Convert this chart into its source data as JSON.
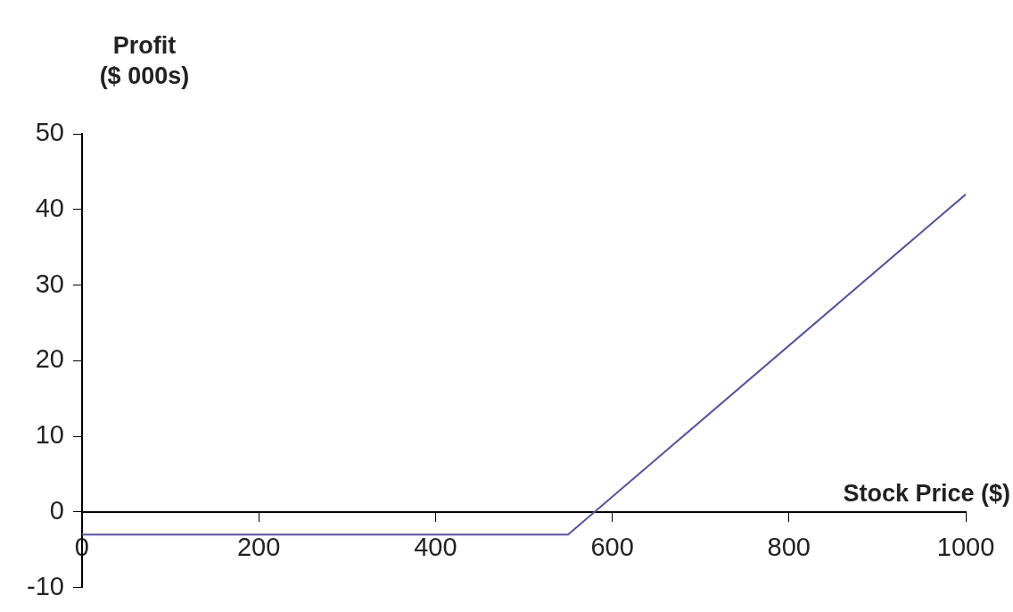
{
  "chart_data": {
    "type": "line",
    "xlabel": "Stock Price ($)",
    "ylabel": "Profit\n($ 000s)",
    "series": [
      {
        "color": "#55559a",
        "x": [
          0,
          550,
          1000
        ],
        "values": [
          -3,
          -3,
          42
        ]
      }
    ],
    "xlim": [
      0,
      1000
    ],
    "xticks": [
      0,
      200,
      400,
      600,
      800,
      1000
    ],
    "ylim": [
      -10,
      50
    ],
    "yticks": [
      -10,
      0,
      10,
      20,
      30,
      40,
      50
    ],
    "grid": false,
    "legend": false,
    "marker": "none",
    "line_style": "solid"
  }
}
